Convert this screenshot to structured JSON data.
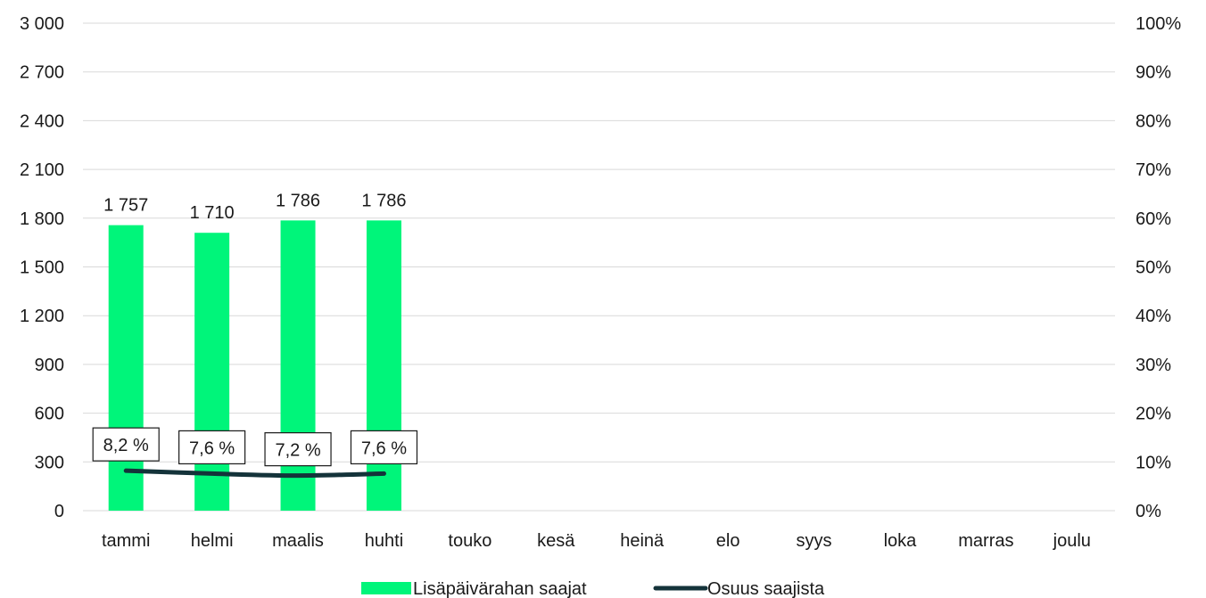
{
  "chart_data": {
    "type": "bar",
    "categories": [
      "tammi",
      "helmi",
      "maalis",
      "huhti",
      "touko",
      "kesä",
      "heinä",
      "elo",
      "syys",
      "loka",
      "marras",
      "joulu"
    ],
    "series": [
      {
        "name": "Lisäpäivärahan saajat",
        "type": "bar",
        "axis": "left",
        "color": "#00f57a",
        "values": [
          1757,
          1710,
          1786,
          1786,
          null,
          null,
          null,
          null,
          null,
          null,
          null,
          null
        ],
        "data_labels": [
          "1 757",
          "1 710",
          "1 786",
          "1 786"
        ]
      },
      {
        "name": "Osuus saajista",
        "type": "line",
        "axis": "right",
        "color": "#14333a",
        "values": [
          8.2,
          7.6,
          7.2,
          7.6,
          null,
          null,
          null,
          null,
          null,
          null,
          null,
          null
        ],
        "data_labels": [
          "8,2 %",
          "7,6 %",
          "7,2 %",
          "7,6 %"
        ]
      }
    ],
    "y_left": {
      "ylim": [
        0,
        3000
      ],
      "ticks": [
        0,
        300,
        600,
        900,
        1200,
        1500,
        1800,
        2100,
        2400,
        2700,
        3000
      ],
      "tick_labels": [
        "0",
        "300",
        "600",
        "900",
        "1 200",
        "1 500",
        "1 800",
        "2 100",
        "2 400",
        "2 700",
        "3 000"
      ]
    },
    "y_right": {
      "ylim": [
        0,
        100
      ],
      "ticks": [
        0,
        10,
        20,
        30,
        40,
        50,
        60,
        70,
        80,
        90,
        100
      ],
      "tick_labels": [
        "0%",
        "10%",
        "20%",
        "30%",
        "40%",
        "50%",
        "60%",
        "70%",
        "80%",
        "90%",
        "100%"
      ]
    },
    "grid": true,
    "legend": "bottom"
  }
}
